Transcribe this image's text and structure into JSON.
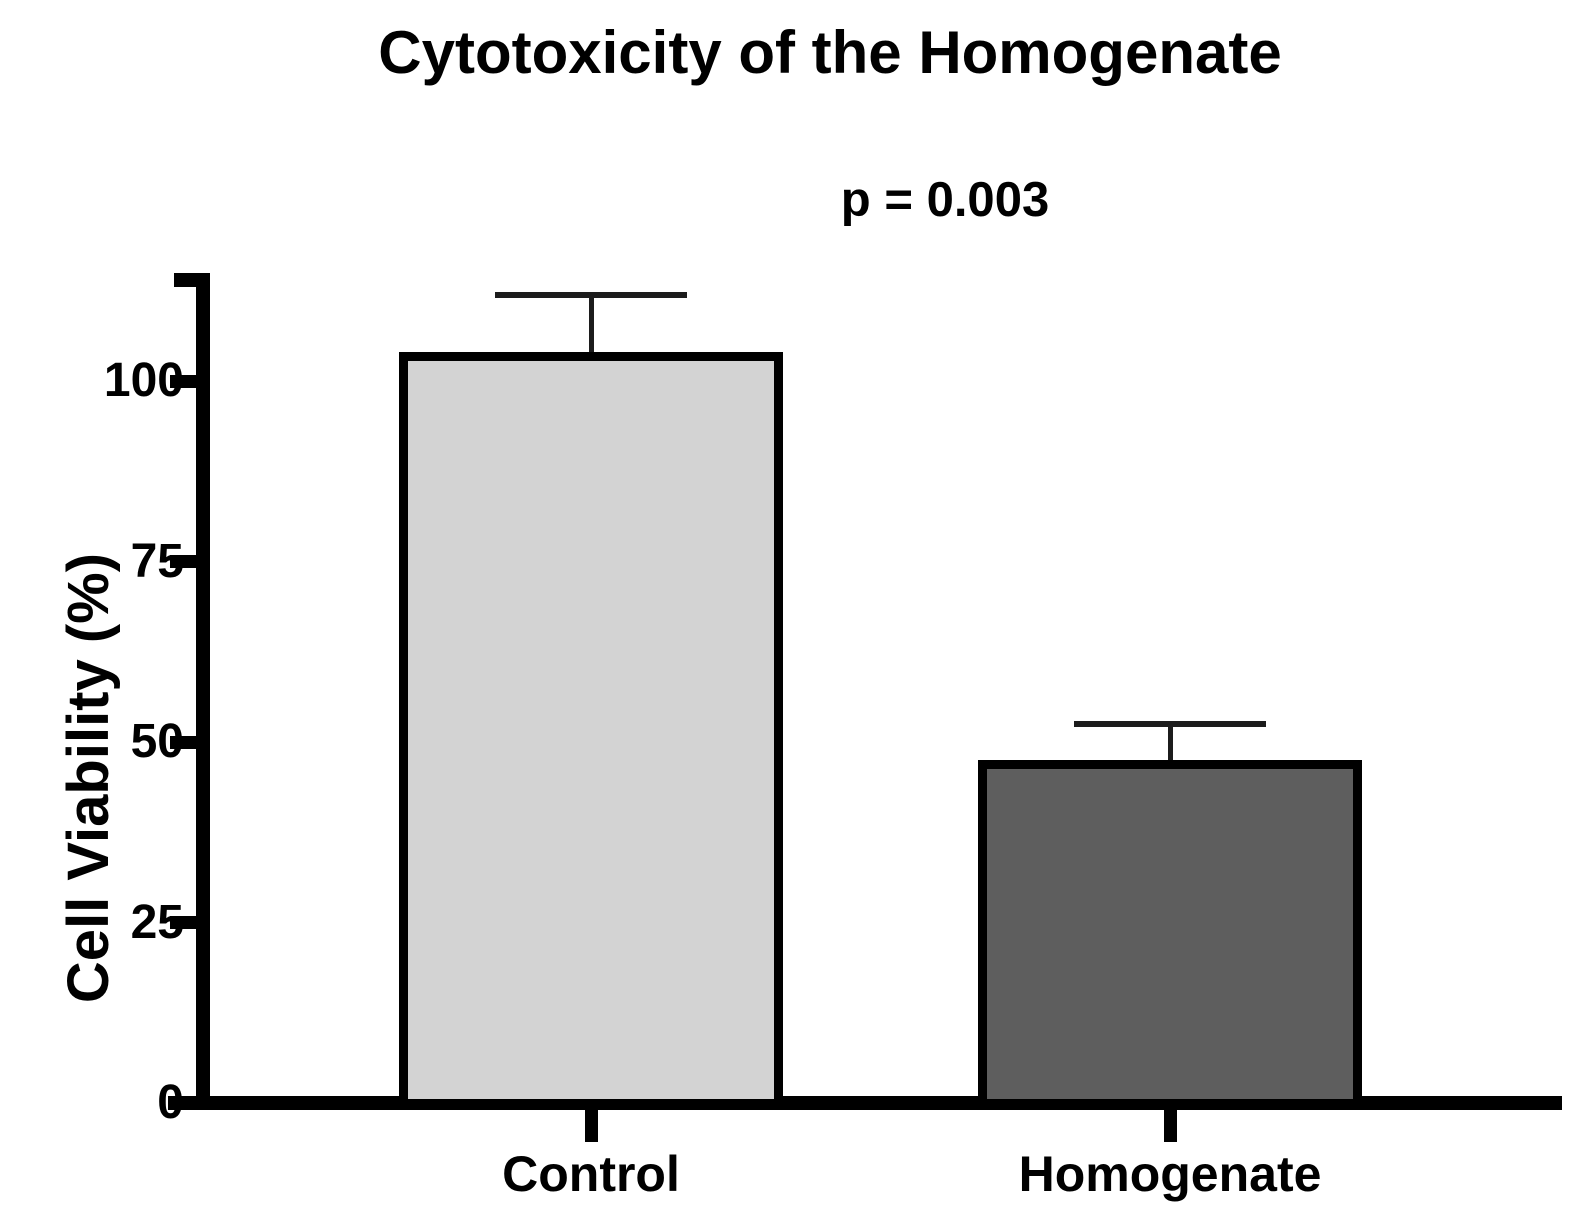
{
  "title": "Cytotoxicity of the Homogenate",
  "annotation": {
    "p_label": "p = 0.003"
  },
  "axes": {
    "ylabel": "Cell Viability (%)",
    "xlabel": ""
  },
  "chart_data": {
    "type": "bar",
    "title": "Cytotoxicity of the Homogenate",
    "categories": [
      "Control",
      "Homogenate"
    ],
    "values": [
      104,
      47.5
    ],
    "errors": [
      8,
      5
    ],
    "error_style": "upper-only-sd",
    "annotation": "p = 0.003",
    "xlabel": "",
    "ylabel": "Cell Viability (%)",
    "ylim": [
      0,
      115
    ],
    "yticks": [
      0,
      25,
      50,
      75,
      100
    ],
    "grid": false,
    "legend_position": "none",
    "bar_colors": [
      "#d3d3d3",
      "#5e5e5e"
    ],
    "bar_border_color": "#000000",
    "error_bar_color": "#1c1c1c",
    "background_color": "#ffffff",
    "text_color": "#000000"
  }
}
